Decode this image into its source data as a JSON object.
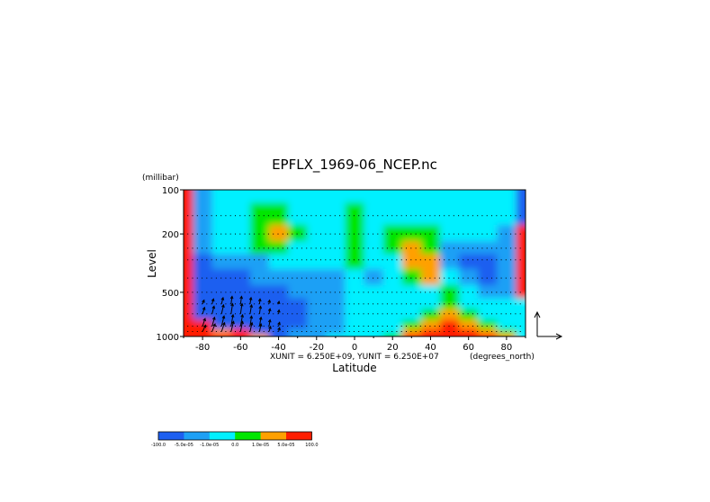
{
  "chart_data": {
    "type": "heatmap",
    "title": "EPFLX_1969-06_NCEP.nc",
    "xlabel": "Latitude",
    "ylabel": "Level",
    "y_units": "(millibar)",
    "x_units": "(degrees_north)",
    "vector_scale": "XUNIT = 6.250E+09, YUNIT = 6.250E+07",
    "xlim": [
      -90,
      90
    ],
    "ylim": [
      100,
      1000
    ],
    "y_scale": "log (pressure, inverted)",
    "x_ticks": [
      -80,
      -60,
      -40,
      -20,
      0,
      20,
      40,
      60,
      80
    ],
    "x_tick_labels": [
      "-80",
      "-60",
      "-40",
      "-20",
      "0",
      "20",
      "40",
      "60",
      "80"
    ],
    "y_ticks": [
      100,
      200,
      500,
      1000
    ],
    "y_tick_labels": [
      "100",
      "200",
      "500",
      "1000"
    ],
    "levels": [
      -100,
      -5e-05,
      -1e-05,
      0,
      1e-05,
      5e-05,
      100
    ],
    "colorbar_labels": [
      "-100.0",
      "-5.0e-05",
      "-1.0e-05",
      "0.0",
      "1.0e-05",
      "5.0e-05",
      "100.0"
    ],
    "colors": [
      "#1e5ff0",
      "#1ea0f5",
      "#00f0ff",
      "#00e600",
      "#ffa000",
      "#ff1e00"
    ],
    "grid": false,
    "legend": "colorbar bottom-left",
    "lat": [
      -90,
      -80,
      -70,
      -60,
      -50,
      -40,
      -30,
      -20,
      -10,
      0,
      10,
      20,
      30,
      40,
      50,
      60,
      70,
      80,
      90
    ],
    "lev": [
      100,
      150,
      200,
      250,
      300,
      400,
      500,
      600,
      700,
      850,
      925,
      1000
    ],
    "classes": [
      [
        5,
        1,
        2,
        2,
        2,
        2,
        2,
        2,
        2,
        2,
        2,
        2,
        2,
        2,
        2,
        2,
        2,
        2,
        0
      ],
      [
        5,
        1,
        2,
        2,
        3,
        3,
        2,
        2,
        2,
        3,
        2,
        2,
        2,
        2,
        2,
        2,
        2,
        2,
        0
      ],
      [
        5,
        1,
        2,
        2,
        3,
        4,
        3,
        2,
        2,
        3,
        2,
        3,
        3,
        3,
        2,
        2,
        2,
        1,
        5
      ],
      [
        5,
        1,
        2,
        2,
        3,
        3,
        2,
        2,
        2,
        3,
        2,
        3,
        4,
        3,
        1,
        1,
        1,
        1,
        5
      ],
      [
        5,
        0,
        1,
        1,
        1,
        2,
        2,
        2,
        2,
        3,
        2,
        2,
        4,
        4,
        1,
        0,
        0,
        1,
        5
      ],
      [
        5,
        0,
        0,
        0,
        1,
        1,
        1,
        1,
        1,
        2,
        1,
        2,
        3,
        4,
        2,
        1,
        0,
        1,
        5
      ],
      [
        5,
        0,
        0,
        0,
        0,
        0,
        1,
        1,
        1,
        2,
        2,
        2,
        2,
        2,
        3,
        2,
        1,
        1,
        5
      ],
      [
        5,
        0,
        0,
        0,
        0,
        0,
        0,
        1,
        1,
        2,
        2,
        2,
        2,
        2,
        3,
        2,
        2,
        2,
        2
      ],
      [
        5,
        0,
        0,
        0,
        0,
        0,
        0,
        1,
        1,
        2,
        2,
        2,
        2,
        3,
        4,
        3,
        2,
        2,
        2
      ],
      [
        5,
        5,
        0,
        0,
        0,
        0,
        0,
        1,
        1,
        2,
        2,
        2,
        3,
        4,
        5,
        4,
        3,
        2,
        2
      ],
      [
        5,
        5,
        4,
        5,
        0,
        0,
        1,
        1,
        1,
        2,
        2,
        2,
        4,
        5,
        5,
        5,
        4,
        3,
        2
      ],
      [
        5,
        5,
        5,
        5,
        4,
        0,
        1,
        1,
        2,
        2,
        2,
        3,
        5,
        5,
        5,
        5,
        5,
        4,
        2
      ]
    ],
    "vectors": {
      "lat": [
        -80,
        -75,
        -70,
        -65,
        -60,
        -55,
        -50,
        -45,
        -40
      ],
      "lev": [
        600,
        700,
        850,
        925
      ],
      "u": [
        [
          0.3,
          0.3,
          0.3,
          0.2,
          0.2,
          0.2,
          0.1,
          0.1,
          0.1
        ],
        [
          0.4,
          0.4,
          0.4,
          0.3,
          0.3,
          0.3,
          0.2,
          0.2,
          0.1
        ],
        [
          0.5,
          0.5,
          0.5,
          0.4,
          0.4,
          0.3,
          0.3,
          0.2,
          0.2
        ],
        [
          0.6,
          0.6,
          0.6,
          0.5,
          0.4,
          0.4,
          0.3,
          0.3,
          0.2
        ]
      ],
      "v": [
        [
          0.3,
          0.4,
          0.5,
          0.6,
          0.6,
          0.5,
          0.4,
          0.3,
          0.2
        ],
        [
          0.5,
          0.6,
          0.7,
          0.8,
          0.8,
          0.7,
          0.6,
          0.4,
          0.3
        ],
        [
          0.6,
          0.7,
          0.8,
          0.9,
          0.9,
          0.8,
          0.7,
          0.5,
          0.3
        ],
        [
          0.5,
          0.6,
          0.7,
          0.8,
          0.8,
          0.7,
          0.6,
          0.4,
          0.3
        ]
      ]
    }
  }
}
